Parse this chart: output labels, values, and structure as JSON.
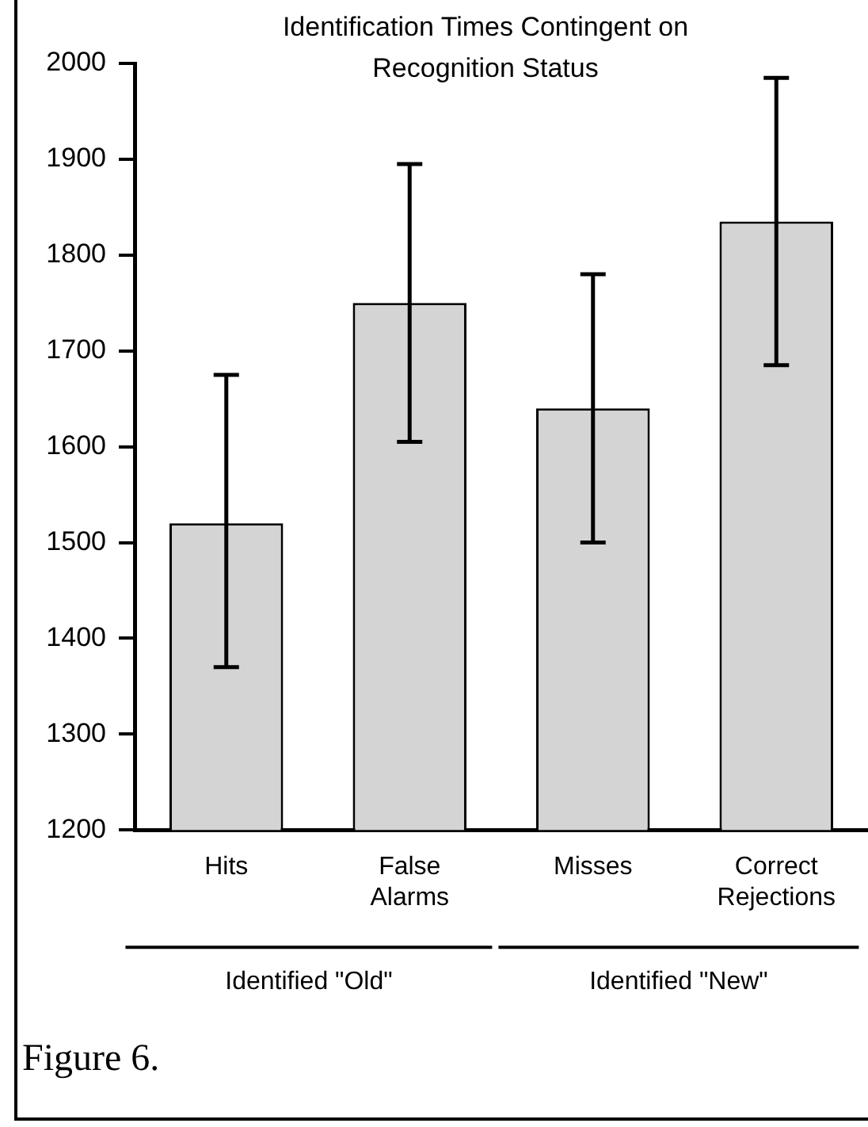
{
  "chart_data": {
    "type": "bar",
    "title": "Identification Times Contingent on Recognition Status",
    "categories": [
      "Hits",
      "False Alarms",
      "Misses",
      "Correct Rejections"
    ],
    "values": [
      1520,
      1750,
      1640,
      1835
    ],
    "errors": [
      [
        1370,
        1675
      ],
      [
        1605,
        1895
      ],
      [
        1500,
        1780
      ],
      [
        1685,
        1985
      ]
    ],
    "color": "#d4d4d4",
    "ylim": [
      1200,
      2000
    ],
    "yticks": [
      1200,
      1300,
      1400,
      1500,
      1600,
      1700,
      1800,
      1900,
      2000
    ],
    "grid": false,
    "annotations": [
      "Identified \"Old\"",
      "Identified \"New\"",
      "Figure 6."
    ]
  }
}
